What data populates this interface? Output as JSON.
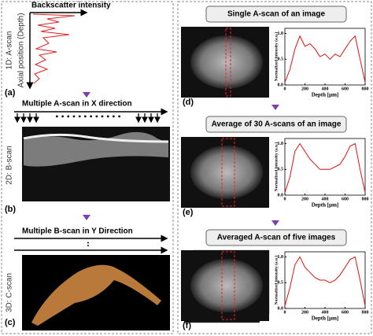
{
  "left": {
    "a_axis_top": "Backscatter intensity",
    "a_axis_side": "Axial position (Depth)",
    "a_label": "1D: A-scan",
    "a_tag": "(a)",
    "b_caption": "Multiple A-scan in X direction",
    "b_label": "2D: B-scan",
    "b_tag": "(b)",
    "c_caption": "Multiple B-scan in Y Direction",
    "c_label": "3D: C-scan",
    "c_tag": "(c)"
  },
  "right": {
    "panels": [
      {
        "title": "Single A-scan of an image",
        "tag": "(d)"
      },
      {
        "title": "Average of 30 A-scans of an image",
        "tag": "(e)"
      },
      {
        "title": "Averaged A-scan of five images",
        "tag": "(f)"
      }
    ]
  },
  "plots": [
    {
      "xlabel": "Depth [μm]",
      "ylabel": "Normalized intensity (a.u.)",
      "xlim": [
        0,
        800
      ],
      "ylim": [
        0,
        1.1
      ],
      "xticks": [
        0,
        200,
        400,
        600,
        800
      ],
      "yticks": [
        {
          "value": 0,
          "label": "0.0"
        },
        {
          "value": 0.5,
          "label": "0.5"
        },
        {
          "value": 1,
          "label": "1.0"
        }
      ],
      "x": [
        0,
        50,
        100,
        150,
        200,
        250,
        300,
        350,
        400,
        450,
        500,
        550,
        600,
        650,
        700,
        750,
        800
      ],
      "values": [
        0.05,
        0.3,
        0.7,
        0.95,
        0.75,
        0.8,
        0.7,
        0.55,
        0.6,
        0.5,
        0.6,
        0.55,
        0.7,
        0.85,
        0.95,
        0.5,
        0.05
      ]
    },
    {
      "xlabel": "Depth [μm]",
      "ylabel": "Normalized intensity (a.u.)",
      "xlim": [
        0,
        800
      ],
      "ylim": [
        0,
        1.1
      ],
      "xticks": [
        0,
        200,
        400,
        600,
        800
      ],
      "yticks": [
        {
          "value": 0,
          "label": "0.0"
        },
        {
          "value": 0.5,
          "label": "0.5"
        },
        {
          "value": 1,
          "label": "1.0"
        }
      ],
      "x": [
        0,
        50,
        100,
        150,
        200,
        250,
        300,
        350,
        400,
        450,
        500,
        550,
        600,
        650,
        700,
        750,
        800
      ],
      "values": [
        0.05,
        0.35,
        0.85,
        1.0,
        0.85,
        0.7,
        0.6,
        0.5,
        0.5,
        0.5,
        0.55,
        0.6,
        0.75,
        0.95,
        1.0,
        0.5,
        0.05
      ]
    },
    {
      "xlabel": "Depth [μm]",
      "ylabel": "Normalized intensity (a.u.)",
      "xlim": [
        0,
        800
      ],
      "ylim": [
        0,
        1.1
      ],
      "xticks": [
        0,
        200,
        400,
        600,
        800
      ],
      "yticks": [
        {
          "value": 0,
          "label": "0.0"
        },
        {
          "value": 0.5,
          "label": "0.5"
        },
        {
          "value": 1,
          "label": "1.0"
        }
      ],
      "x": [
        0,
        50,
        100,
        150,
        200,
        250,
        300,
        350,
        400,
        450,
        500,
        550,
        600,
        650,
        700,
        750,
        800
      ],
      "values": [
        0.05,
        0.4,
        0.85,
        1.0,
        0.8,
        0.7,
        0.6,
        0.55,
        0.55,
        0.5,
        0.55,
        0.65,
        0.8,
        0.95,
        1.0,
        0.55,
        0.05
      ]
    }
  ]
}
